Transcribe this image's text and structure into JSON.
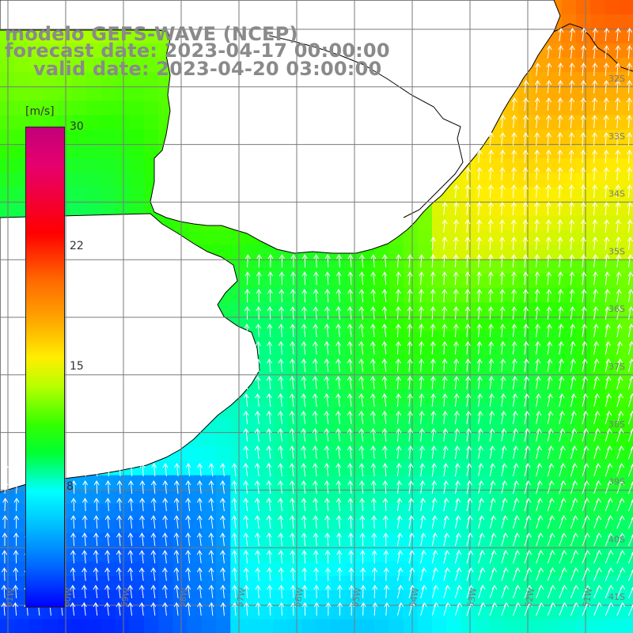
{
  "title": {
    "line1": "modelo GEFS-WAVE (NCEP)",
    "line2": "forecast date: 2023-04-17 00:00:00",
    "line3": "valid date: 2023-04-20 03:00:00"
  },
  "colorbar": {
    "unit": "[m/s]",
    "ticks": [
      "30",
      "22",
      "15",
      "8"
    ],
    "colors": [
      "#c2007a",
      "#ff0000",
      "#ffa500",
      "#ffee00",
      "#00ff33",
      "#00ffff",
      "#006dff",
      "#0000ff"
    ]
  },
  "map": {
    "lat_labels": [
      "32S",
      "33S",
      "34S",
      "35S",
      "36S",
      "37S",
      "38S",
      "39S",
      "40S",
      "41S"
    ],
    "lon_labels": [
      "61W",
      "60W",
      "59W",
      "58W",
      "57W",
      "56W",
      "55W",
      "54W",
      "53W",
      "52W",
      "51W"
    ],
    "land_color": "#ffffff",
    "grid_color": "#7a7a7a",
    "vector_color": "#ffffff"
  }
}
